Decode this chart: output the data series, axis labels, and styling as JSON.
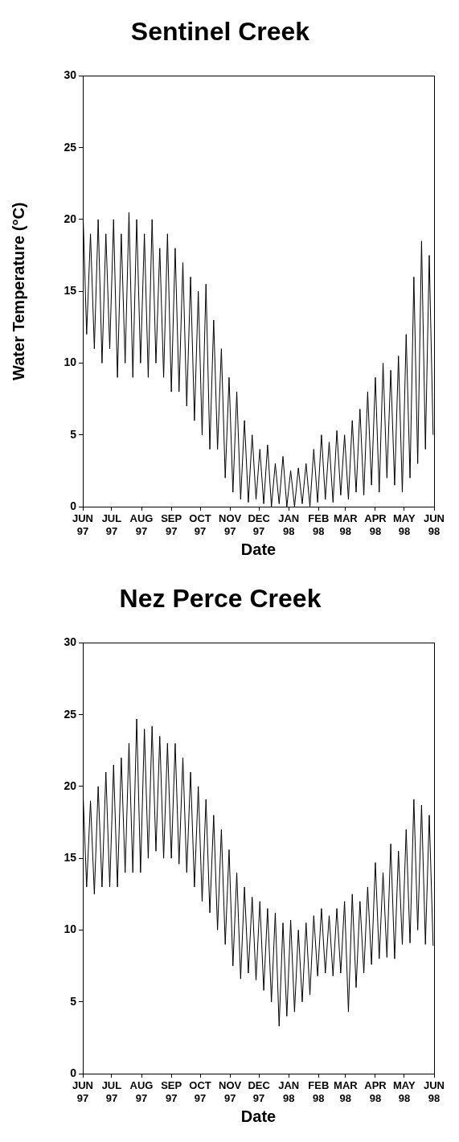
{
  "chart_data": [
    {
      "type": "line",
      "title": "Sentinel Creek",
      "xlabel": "Date",
      "ylabel": "Water Temperature (°C)",
      "ylim": [
        0,
        30
      ],
      "yticks": [
        0,
        5,
        10,
        15,
        20,
        25,
        30
      ],
      "xlim": [
        "1997-06-01",
        "1998-06-01"
      ],
      "xticks": [
        {
          "value": "1997-06-01",
          "label": "JUN 97"
        },
        {
          "value": "1997-07-01",
          "label": "JUL 97"
        },
        {
          "value": "1997-08-01",
          "label": "AUG 97"
        },
        {
          "value": "1997-09-01",
          "label": "SEP 97"
        },
        {
          "value": "1997-10-01",
          "label": "OCT 97"
        },
        {
          "value": "1997-11-01",
          "label": "NOV 97"
        },
        {
          "value": "1997-12-01",
          "label": "DEC 97"
        },
        {
          "value": "1998-01-01",
          "label": "JAN 98"
        },
        {
          "value": "1998-02-01",
          "label": "FEB 98"
        },
        {
          "value": "1998-03-01",
          "label": "MAR 98"
        },
        {
          "value": "1998-04-01",
          "label": "APR 98"
        },
        {
          "value": "1998-05-01",
          "label": "MAY 98"
        },
        {
          "value": "1998-06-01",
          "label": "JUN 98"
        }
      ],
      "x": [
        "1997-06-01",
        "1997-06-05",
        "1997-06-09",
        "1997-06-13",
        "1997-06-17",
        "1997-06-21",
        "1997-06-25",
        "1997-06-29",
        "1997-07-03",
        "1997-07-07",
        "1997-07-11",
        "1997-07-15",
        "1997-07-19",
        "1997-07-23",
        "1997-07-27",
        "1997-07-31",
        "1997-08-04",
        "1997-08-08",
        "1997-08-12",
        "1997-08-16",
        "1997-08-20",
        "1997-08-24",
        "1997-08-28",
        "1997-09-01",
        "1997-09-05",
        "1997-09-09",
        "1997-09-13",
        "1997-09-17",
        "1997-09-21",
        "1997-09-25",
        "1997-09-29",
        "1997-10-03",
        "1997-10-07",
        "1997-10-11",
        "1997-10-15",
        "1997-10-19",
        "1997-10-23",
        "1997-10-27",
        "1997-10-31",
        "1997-11-04",
        "1997-11-08",
        "1997-11-12",
        "1997-11-16",
        "1997-11-20",
        "1997-11-24",
        "1997-11-28",
        "1997-12-02",
        "1997-12-06",
        "1997-12-10",
        "1997-12-14",
        "1997-12-18",
        "1997-12-22",
        "1997-12-26",
        "1997-12-30",
        "1998-01-03",
        "1998-01-07",
        "1998-01-11",
        "1998-01-15",
        "1998-01-19",
        "1998-01-23",
        "1998-01-27",
        "1998-01-31",
        "1998-02-04",
        "1998-02-08",
        "1998-02-12",
        "1998-02-16",
        "1998-02-20",
        "1998-02-24",
        "1998-02-28",
        "1998-03-04",
        "1998-03-08",
        "1998-03-12",
        "1998-03-16",
        "1998-03-20",
        "1998-03-24",
        "1998-03-28",
        "1998-04-01",
        "1998-04-05",
        "1998-04-09",
        "1998-04-13",
        "1998-04-17",
        "1998-04-21",
        "1998-04-25",
        "1998-04-29",
        "1998-05-03",
        "1998-05-07",
        "1998-05-11",
        "1998-05-15",
        "1998-05-19",
        "1998-05-23",
        "1998-05-27",
        "1998-05-31"
      ],
      "series": [
        {
          "color": "#000000",
          "values": [
            21,
            12,
            19,
            11,
            20,
            10,
            19,
            11,
            20,
            9,
            19,
            10,
            20.5,
            9,
            20,
            10,
            19,
            9,
            20,
            10,
            18,
            9,
            19,
            8,
            18,
            8,
            17,
            7,
            16,
            6,
            15,
            5,
            15.5,
            4,
            13,
            4,
            11,
            2,
            9,
            1,
            8,
            0.5,
            6,
            0.3,
            5,
            0.5,
            4,
            0.2,
            4.3,
            0,
            3,
            0.2,
            3.5,
            0,
            2.5,
            0,
            2.7,
            0.2,
            3,
            0,
            4,
            0.3,
            5,
            0.5,
            4.5,
            0.3,
            5.3,
            0.8,
            5,
            0.5,
            6,
            1,
            6.8,
            0.8,
            8,
            1.5,
            9,
            1,
            10,
            2,
            9.5,
            1.5,
            10.5,
            1,
            12,
            2,
            16,
            3,
            18.5,
            4,
            17.5,
            5
          ]
        }
      ],
      "grid": false,
      "marker": "none"
    },
    {
      "type": "line",
      "title": "Nez Perce Creek",
      "xlabel": "Date",
      "ylim": [
        0,
        30
      ],
      "yticks": [
        0,
        5,
        10,
        15,
        20,
        25,
        30
      ],
      "xlim": [
        "1997-06-01",
        "1998-06-01"
      ],
      "xticks": [
        {
          "value": "1997-06-01",
          "label": "JUN 97"
        },
        {
          "value": "1997-07-01",
          "label": "JUL 97"
        },
        {
          "value": "1997-08-01",
          "label": "AUG 97"
        },
        {
          "value": "1997-09-01",
          "label": "SEP 97"
        },
        {
          "value": "1997-10-01",
          "label": "OCT 97"
        },
        {
          "value": "1997-11-01",
          "label": "NOV 97"
        },
        {
          "value": "1997-12-01",
          "label": "DEC 97"
        },
        {
          "value": "1998-01-01",
          "label": "JAN 98"
        },
        {
          "value": "1998-02-01",
          "label": "FEB 98"
        },
        {
          "value": "1998-03-01",
          "label": "MAR 98"
        },
        {
          "value": "1998-04-01",
          "label": "APR 98"
        },
        {
          "value": "1998-05-01",
          "label": "MAY 98"
        },
        {
          "value": "1998-06-01",
          "label": "JUN 98"
        }
      ],
      "x": [
        "1997-06-01",
        "1997-06-05",
        "1997-06-09",
        "1997-06-13",
        "1997-06-17",
        "1997-06-21",
        "1997-06-25",
        "1997-06-29",
        "1997-07-03",
        "1997-07-07",
        "1997-07-11",
        "1997-07-15",
        "1997-07-19",
        "1997-07-23",
        "1997-07-27",
        "1997-07-31",
        "1997-08-04",
        "1997-08-08",
        "1997-08-12",
        "1997-08-16",
        "1997-08-20",
        "1997-08-24",
        "1997-08-28",
        "1997-09-01",
        "1997-09-05",
        "1997-09-09",
        "1997-09-13",
        "1997-09-17",
        "1997-09-21",
        "1997-09-25",
        "1997-09-29",
        "1997-10-03",
        "1997-10-07",
        "1997-10-11",
        "1997-10-15",
        "1997-10-19",
        "1997-10-23",
        "1997-10-27",
        "1997-10-31",
        "1997-11-04",
        "1997-11-08",
        "1997-11-12",
        "1997-11-16",
        "1997-11-20",
        "1997-11-24",
        "1997-11-28",
        "1997-12-02",
        "1997-12-06",
        "1997-12-10",
        "1997-12-14",
        "1997-12-18",
        "1997-12-22",
        "1997-12-26",
        "1997-12-30",
        "1998-01-03",
        "1998-01-07",
        "1998-01-11",
        "1998-01-15",
        "1998-01-19",
        "1998-01-23",
        "1998-01-27",
        "1998-01-31",
        "1998-02-04",
        "1998-02-08",
        "1998-02-12",
        "1998-02-16",
        "1998-02-20",
        "1998-02-24",
        "1998-02-28",
        "1998-03-04",
        "1998-03-08",
        "1998-03-12",
        "1998-03-16",
        "1998-03-20",
        "1998-03-24",
        "1998-03-28",
        "1998-04-01",
        "1998-04-05",
        "1998-04-09",
        "1998-04-13",
        "1998-04-17",
        "1998-04-21",
        "1998-04-25",
        "1998-04-29",
        "1998-05-03",
        "1998-05-07",
        "1998-05-11",
        "1998-05-15",
        "1998-05-19",
        "1998-05-23",
        "1998-05-27",
        "1998-05-31"
      ],
      "series": [
        {
          "color": "#000000",
          "values": [
            20,
            13,
            19,
            12.5,
            20,
            13,
            21,
            13,
            21.5,
            13,
            22,
            14,
            23,
            14,
            24.7,
            14,
            24,
            15,
            24.2,
            15.5,
            23.5,
            15,
            23,
            15,
            23,
            14.6,
            22,
            14,
            21,
            13,
            20,
            12,
            19.1,
            11.2,
            18,
            10,
            17,
            9,
            15.6,
            7.5,
            14,
            6.6,
            13,
            7,
            12.3,
            6.5,
            12,
            5.8,
            11.5,
            5,
            11.2,
            3.3,
            10.5,
            4,
            10.7,
            4.3,
            10,
            5,
            10.5,
            5.5,
            11,
            6.8,
            11.5,
            7,
            11,
            6.8,
            11.5,
            7,
            12,
            4.3,
            12.5,
            6,
            12,
            7,
            13,
            7.6,
            14.7,
            8,
            14,
            8.1,
            16,
            8,
            15.5,
            9,
            17,
            9.1,
            19.1,
            10,
            18.7,
            9,
            18,
            8.9
          ]
        }
      ],
      "grid": false,
      "marker": "none"
    }
  ]
}
